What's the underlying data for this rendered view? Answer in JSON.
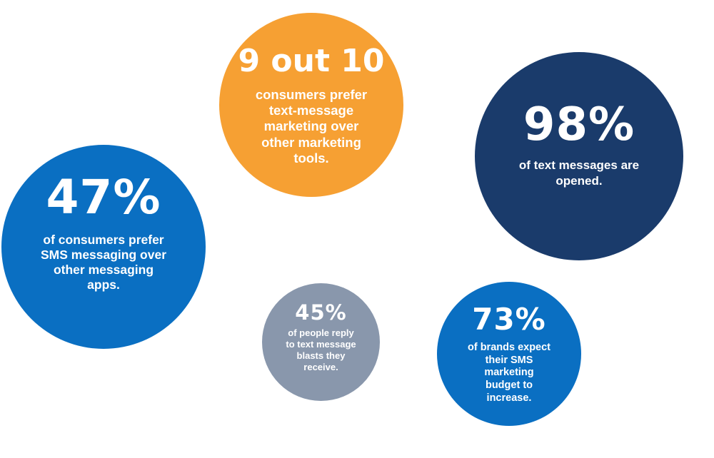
{
  "stats": [
    {
      "value": "9 out 10",
      "description": "consumers prefer text-message marketing over other marketing tools.",
      "color": "#f6a033"
    },
    {
      "value": "98%",
      "description": "of text messages are opened.",
      "color": "#1a3b6b"
    },
    {
      "value": "47%",
      "description": "of consumers prefer SMS messaging over other messaging apps.",
      "color": "#0a6fc2"
    },
    {
      "value": "45%",
      "description": "of people reply to text message blasts they receive.",
      "color": "#8997ac"
    },
    {
      "value": "73%",
      "description": "of brands expect their SMS marketing budget to increase.",
      "color": "#0a6fc2"
    }
  ]
}
